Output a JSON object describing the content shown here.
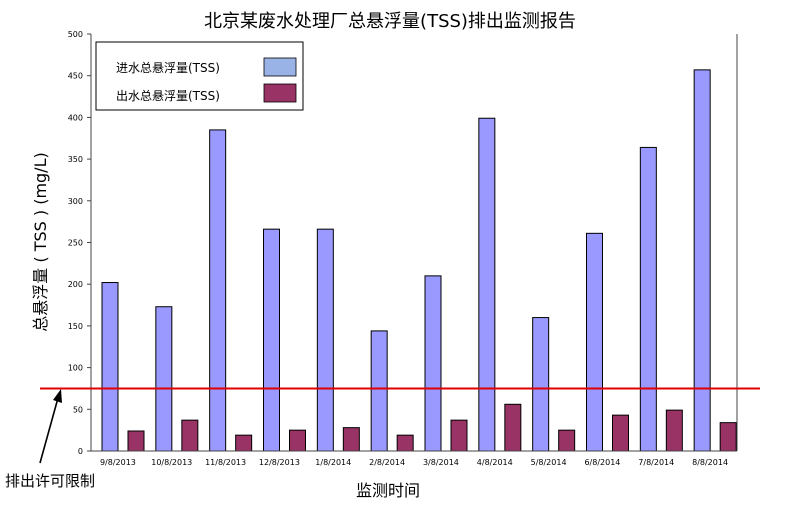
{
  "chart_data": {
    "type": "bar",
    "title": "北京某废水处理厂总悬浮量(TSS)排出监测报告",
    "xlabel": "监测时间",
    "ylabel": "总悬浮量 ( TSS ) (mg/L)",
    "ylim": [
      0,
      500
    ],
    "yticks": [
      0,
      50,
      100,
      150,
      200,
      250,
      300,
      350,
      400,
      450,
      500
    ],
    "grid": false,
    "legend_position": "top-left",
    "categories": [
      "9/8/2013",
      "10/8/2013",
      "11/8/2013",
      "12/8/2013",
      "1/8/2014",
      "2/8/2014",
      "3/8/2014",
      "4/8/2014",
      "5/8/2014",
      "6/8/2014",
      "7/8/2014",
      "8/8/2014"
    ],
    "series": [
      {
        "name": "进水总悬浮量(TSS)",
        "color": "#9999ff",
        "legend_color": "#99b3e6",
        "values": [
          202,
          173,
          385,
          266,
          266,
          144,
          210,
          399,
          160,
          261,
          364,
          457
        ]
      },
      {
        "name": "出水总悬浮量(TSS)",
        "color": "#993366",
        "legend_color": "#993366",
        "values": [
          24,
          37,
          19,
          25,
          28,
          19,
          37,
          56,
          25,
          43,
          49,
          34
        ]
      }
    ],
    "reference_line": {
      "value": 75,
      "color": "#e00000"
    },
    "annotation": "排出许可限制"
  }
}
